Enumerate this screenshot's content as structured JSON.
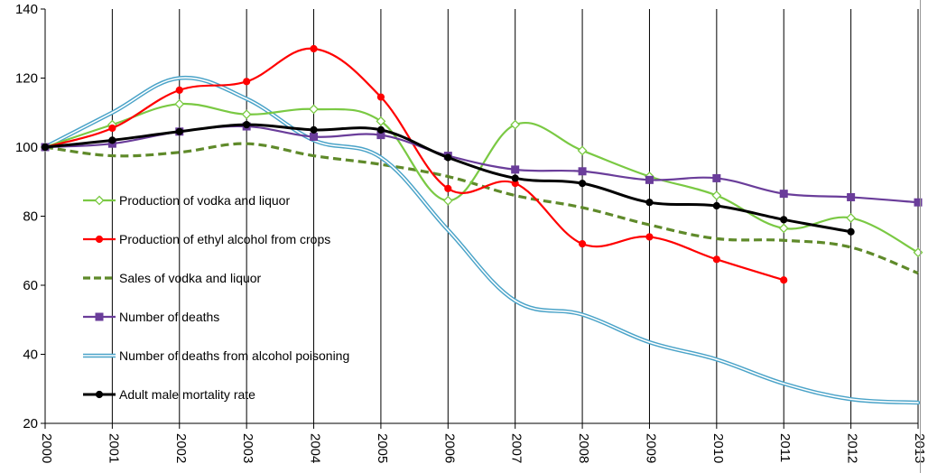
{
  "chart_data": {
    "type": "line",
    "title": "",
    "xlabel": "",
    "ylabel": "",
    "x": [
      2000,
      2001,
      2002,
      2003,
      2004,
      2005,
      2006,
      2007,
      2008,
      2009,
      2010,
      2011,
      2012,
      2013
    ],
    "ylim": [
      20,
      140
    ],
    "yticks": [
      20,
      40,
      60,
      80,
      100,
      120,
      140
    ],
    "grid": "vertical",
    "legend_position": "left-center",
    "series": [
      {
        "name": "Production of vodka and liquor",
        "color": "#7ac943",
        "marker": "diamond-open",
        "line_style": "solid",
        "values": [
          100,
          106.5,
          112.5,
          109.5,
          111,
          107.5,
          84.5,
          106.5,
          99,
          91.5,
          86,
          76.5,
          79.5,
          69.5
        ]
      },
      {
        "name": "Production of ethyl alcohol from crops",
        "color": "#ff0000",
        "marker": "circle",
        "line_style": "solid",
        "values": [
          100,
          105.5,
          116.5,
          119,
          128.5,
          114.5,
          88,
          89.5,
          72,
          74,
          67.5,
          61.5,
          null,
          null
        ]
      },
      {
        "name": "Sales of vodka and liquor",
        "color": "#5f8a2a",
        "marker": "none",
        "line_style": "dashed",
        "values": [
          100,
          97.5,
          98.5,
          101,
          97.5,
          95,
          91.5,
          86,
          82.5,
          77.5,
          73.5,
          73,
          71,
          63.5
        ]
      },
      {
        "name": "Number of deaths",
        "color": "#6a3d9a",
        "marker": "square",
        "line_style": "solid",
        "values": [
          100,
          101,
          104.5,
          106,
          103,
          103.5,
          97.5,
          93.5,
          93,
          90.5,
          91,
          86.5,
          85.5,
          84
        ]
      },
      {
        "name": "Number of deaths from alcohol poisoning",
        "color": "#4aa3c8",
        "marker": "none",
        "line_style": "double",
        "values": [
          100,
          110,
          120,
          114,
          102,
          97,
          76,
          55.5,
          51.5,
          43.5,
          38.5,
          31.5,
          27,
          26
        ]
      },
      {
        "name": "Adult male mortality rate",
        "color": "#000000",
        "marker": "circle",
        "line_style": "solid",
        "values": [
          100,
          102,
          104.5,
          106.5,
          105,
          105,
          97,
          91,
          89.5,
          84,
          83,
          79,
          75.5,
          null
        ]
      }
    ]
  }
}
